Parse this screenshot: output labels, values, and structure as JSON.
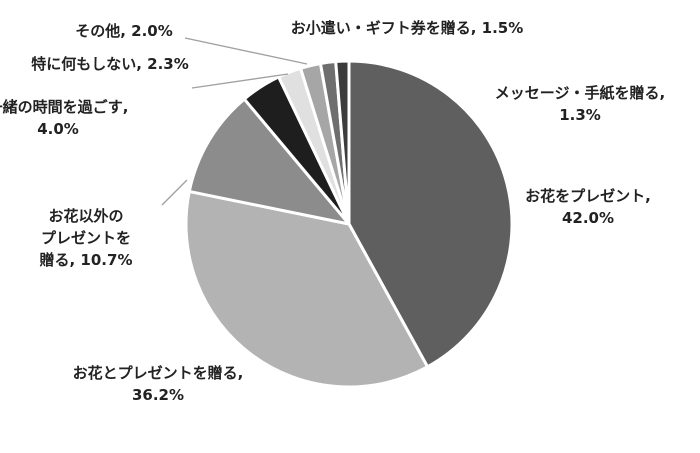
{
  "chart_data": {
    "type": "pie",
    "title": "",
    "start_angle_deg": 0,
    "direction": "clockwise",
    "slices": [
      {
        "label": "お花をプレゼント",
        "value": 42.0,
        "value_text": "42.0%",
        "color": "#5f5f5f"
      },
      {
        "label": "お花とプレゼントを贈る",
        "value": 36.2,
        "value_text": "36.2%",
        "color": "#b3b3b3"
      },
      {
        "label": "お花以外のプレゼントを贈る",
        "value": 10.7,
        "value_text": "10.7%",
        "color": "#8c8c8c"
      },
      {
        "label": "一緒の時間を過ごす",
        "value": 4.0,
        "value_text": "4.0%",
        "color": "#1e1e1e"
      },
      {
        "label": "特に何もしない",
        "value": 2.3,
        "value_text": "2.3%",
        "color": "#e0e0e0"
      },
      {
        "label": "その他",
        "value": 2.0,
        "value_text": "2.0%",
        "color": "#a6a6a6"
      },
      {
        "label": "お小遣い・ギフト券を贈る",
        "value": 1.5,
        "value_text": "1.5%",
        "color": "#6e6e6e"
      },
      {
        "label": "メッセージ・手紙を贈る",
        "value": 1.3,
        "value_text": "1.3%",
        "color": "#3c3c3c"
      }
    ],
    "labels": [
      {
        "lines": [
          "メッセージ・手紙を贈る,",
          "1.3%"
        ]
      },
      {
        "lines": [
          "お花をプレゼント,",
          "42.0%"
        ]
      },
      {
        "lines": [
          "お花とプレゼントを贈る,",
          "36.2%"
        ]
      },
      {
        "lines": [
          "お花以外の",
          "プレゼントを",
          "贈る, 10.7%"
        ]
      },
      {
        "lines": [
          "一緒の時間を過ごす,",
          "4.0%"
        ]
      },
      {
        "lines": [
          "特に何もしない, 2.3%"
        ]
      },
      {
        "lines": [
          "その他, 2.0%"
        ]
      },
      {
        "lines": [
          "お小遣い・ギフト券を贈る, 1.5%"
        ]
      }
    ]
  }
}
